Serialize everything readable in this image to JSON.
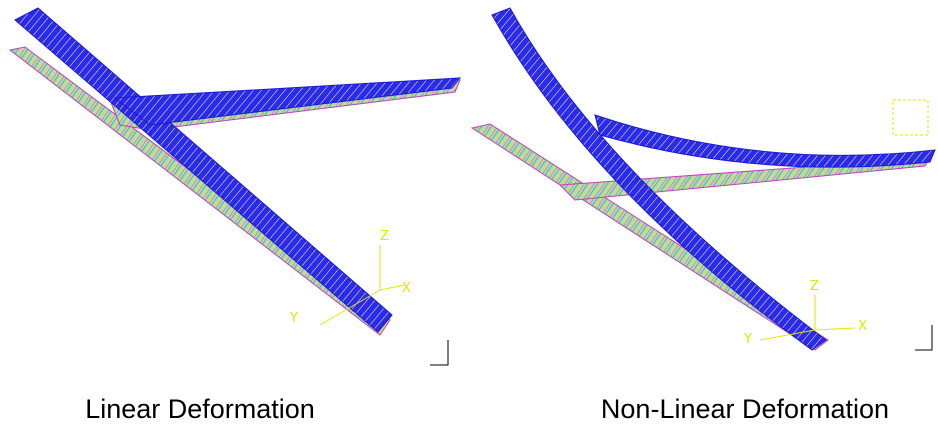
{
  "panels": [
    {
      "caption": "Linear Deformation",
      "axis_labels": [
        "Z",
        "Y",
        "X"
      ]
    },
    {
      "caption": "Non-Linear Deformation",
      "axis_labels": [
        "Z",
        "Y",
        "X"
      ]
    }
  ]
}
